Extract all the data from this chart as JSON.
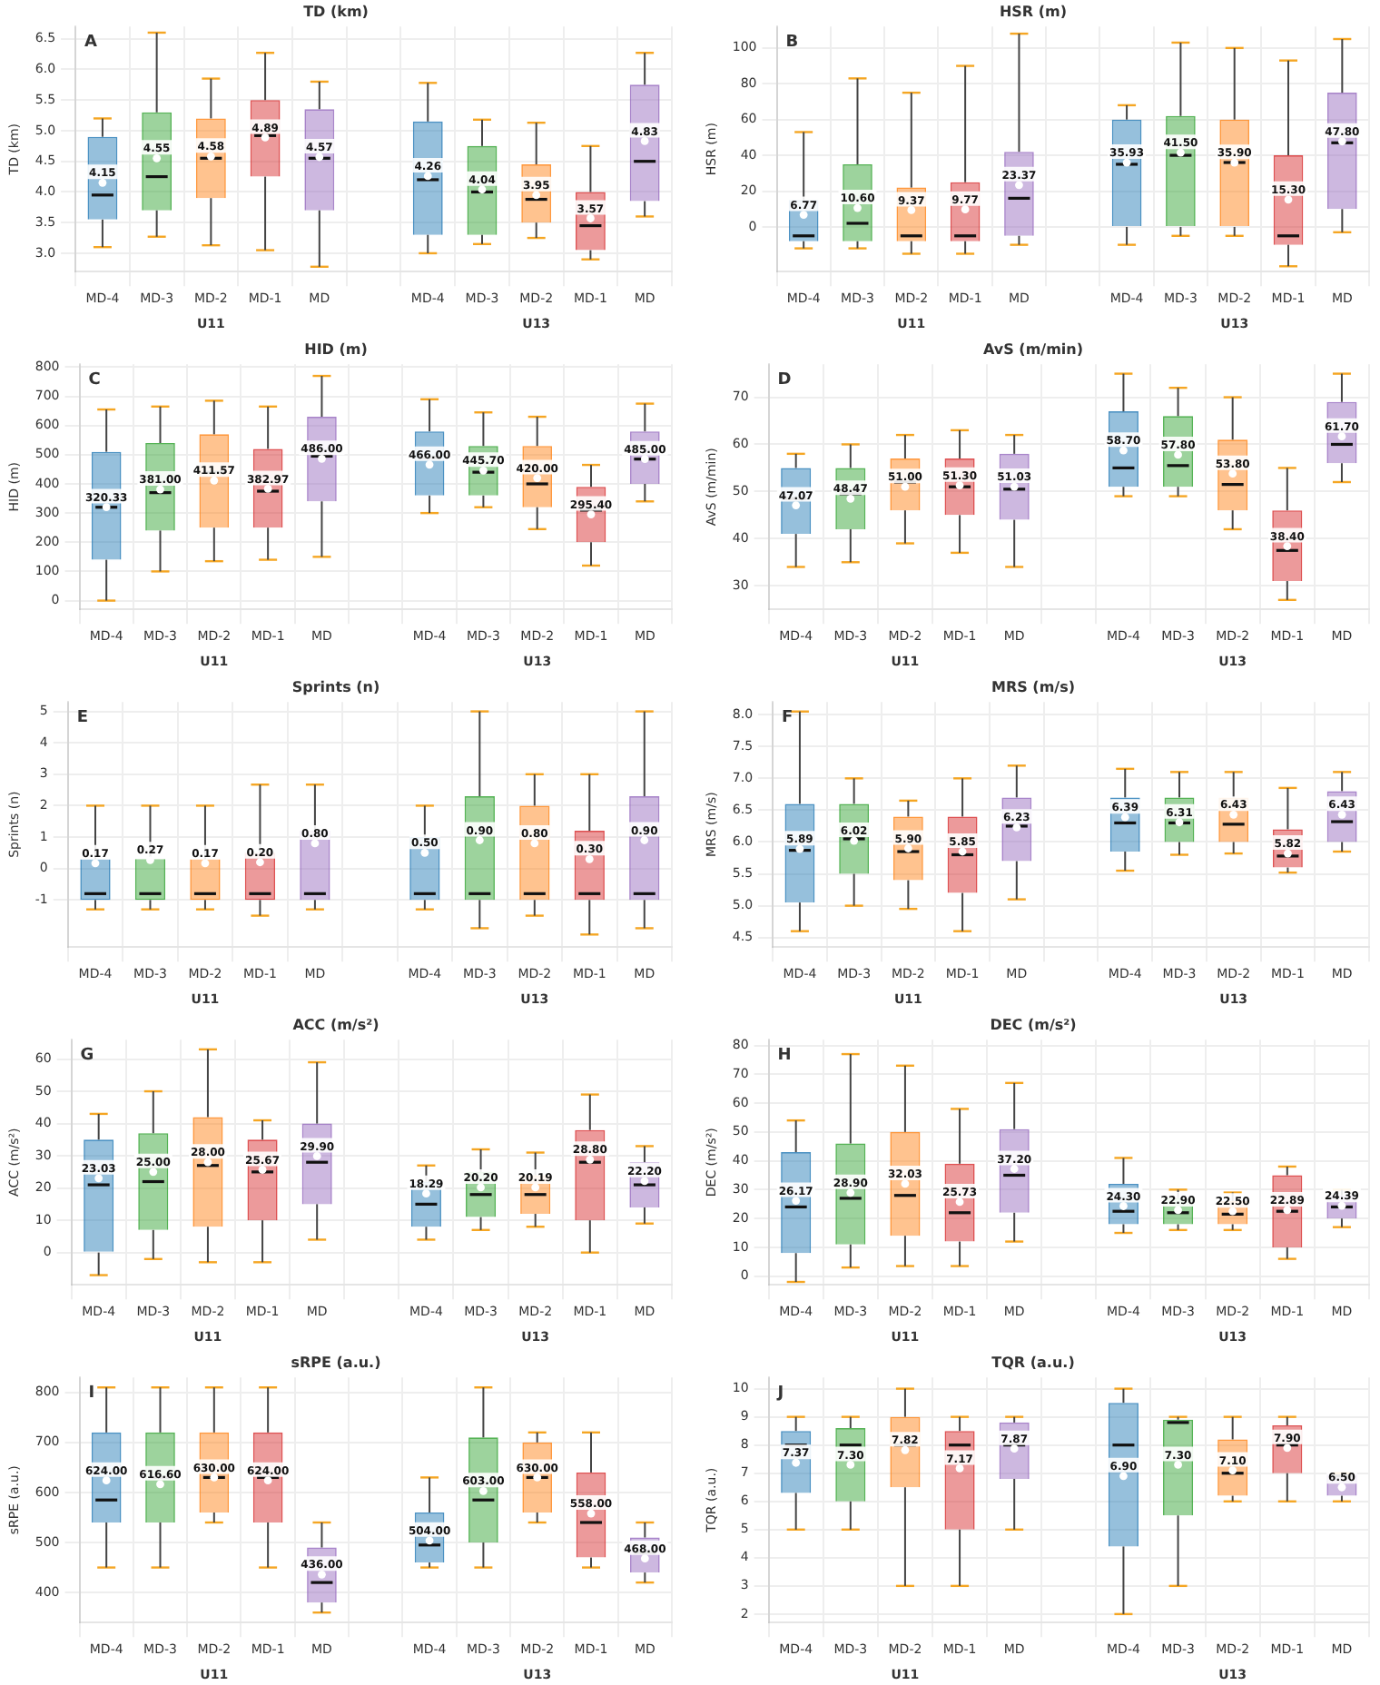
{
  "chart_data": [
    {
      "type": "box",
      "title": "TD (km)",
      "ylabel": "TD (km)",
      "annotations": [
        "A",
        "U11",
        "U13"
      ],
      "categories": [
        "MD-4",
        "MD-3",
        "MD-2",
        "MD-1",
        "MD",
        null,
        "MD-4",
        "MD-3",
        "MD-2",
        "MD-1",
        "MD"
      ],
      "colors": [
        "#1f77b4",
        "#2ca02c",
        "#ff7f0e",
        "#d62728",
        "#9467bd",
        null,
        "#1f77b4",
        "#2ca02c",
        "#ff7f0e",
        "#d62728",
        "#9467bd"
      ],
      "ylim": [
        2.7,
        6.7
      ],
      "yticks": [
        {
          "value": 3,
          "label": "3.0"
        },
        3.5,
        {
          "value": 4,
          "label": "4.0"
        },
        4.5,
        {
          "value": 5,
          "label": "5.0"
        },
        5.5,
        {
          "value": 6,
          "label": "6.0"
        },
        6.5
      ],
      "grid": true,
      "boxes": [
        {
          "low": 3.1,
          "q1": 3.55,
          "median": 3.95,
          "q3": 4.9,
          "high": 5.2,
          "mean": 4.15
        },
        {
          "low": 3.27,
          "q1": 3.7,
          "median": 4.25,
          "q3": 5.3,
          "high": 6.6,
          "mean": 4.55
        },
        {
          "low": 3.13,
          "q1": 3.9,
          "median": 4.55,
          "q3": 5.2,
          "high": 5.85,
          "mean": 4.58
        },
        {
          "low": 3.05,
          "q1": 4.25,
          "median": 4.92,
          "q3": 5.5,
          "high": 6.27,
          "mean": 4.89
        },
        {
          "low": 2.78,
          "q1": 3.7,
          "median": 4.55,
          "q3": 5.35,
          "high": 5.8,
          "mean": 4.57
        },
        null,
        {
          "low": 3.0,
          "q1": 3.3,
          "median": 4.2,
          "q3": 5.15,
          "high": 5.78,
          "mean": 4.26
        },
        {
          "low": 3.15,
          "q1": 3.3,
          "median": 4.0,
          "q3": 4.75,
          "high": 5.18,
          "mean": 4.04
        },
        {
          "low": 3.25,
          "q1": 3.5,
          "median": 3.88,
          "q3": 4.45,
          "high": 5.13,
          "mean": 3.95
        },
        {
          "low": 2.9,
          "q1": 3.05,
          "median": 3.45,
          "q3": 4.0,
          "high": 4.75,
          "mean": 3.57
        },
        {
          "low": 3.6,
          "q1": 3.85,
          "median": 4.5,
          "q3": 5.75,
          "high": 6.27,
          "mean": 4.83
        }
      ],
      "value_labels": [
        "4.15",
        "4.55",
        "4.58",
        "4.89",
        "4.57",
        null,
        "4.26",
        "4.04",
        "3.95",
        "3.57",
        "4.83"
      ]
    },
    {
      "type": "box",
      "title": "HSR (m)",
      "ylabel": "HSR (m)",
      "annotations": [
        "B",
        "U11",
        "U13"
      ],
      "categories": [
        "MD-4",
        "MD-3",
        "MD-2",
        "MD-1",
        "MD",
        null,
        "MD-4",
        "MD-3",
        "MD-2",
        "MD-1",
        "MD"
      ],
      "colors": [
        "#1f77b4",
        "#2ca02c",
        "#ff7f0e",
        "#d62728",
        "#9467bd",
        null,
        "#1f77b4",
        "#2ca02c",
        "#ff7f0e",
        "#d62728",
        "#9467bd"
      ],
      "ylim": [
        -25,
        112
      ],
      "yticks": [
        0,
        20,
        40,
        60,
        80,
        100
      ],
      "grid": true,
      "boxes": [
        {
          "low": -12,
          "q1": -8,
          "median": -5,
          "q3": 15,
          "high": 53,
          "mean": 6.77
        },
        {
          "low": -12,
          "q1": -8,
          "median": 2,
          "q3": 35,
          "high": 83,
          "mean": 10.6
        },
        {
          "low": -15,
          "q1": -8,
          "median": -5,
          "q3": 22,
          "high": 75,
          "mean": 9.37
        },
        {
          "low": -15,
          "q1": -8,
          "median": -5,
          "q3": 25,
          "high": 90,
          "mean": 9.77
        },
        {
          "low": -10,
          "q1": -5,
          "median": 16,
          "q3": 42,
          "high": 108,
          "mean": 23.37
        },
        null,
        {
          "low": -10,
          "q1": 0,
          "median": 35,
          "q3": 60,
          "high": 68,
          "mean": 35.93
        },
        {
          "low": -5,
          "q1": 0,
          "median": 40,
          "q3": 62,
          "high": 103,
          "mean": 41.5
        },
        {
          "low": -5,
          "q1": 0,
          "median": 36,
          "q3": 60,
          "high": 100,
          "mean": 35.9
        },
        {
          "low": -22,
          "q1": -10,
          "median": -5,
          "q3": 40,
          "high": 93,
          "mean": 15.3
        },
        {
          "low": -3,
          "q1": 10,
          "median": 47,
          "q3": 75,
          "high": 105,
          "mean": 47.8
        }
      ],
      "value_labels": [
        "6.77",
        "10.60",
        "9.37",
        "9.77",
        "23.37",
        null,
        "35.93",
        "41.50",
        "35.90",
        "15.30",
        "47.80"
      ]
    },
    {
      "type": "box",
      "title": "HID (m)",
      "ylabel": "HID (m)",
      "annotations": [
        "C",
        "U11",
        "U13"
      ],
      "categories": [
        "MD-4",
        "MD-3",
        "MD-2",
        "MD-1",
        "MD",
        null,
        "MD-4",
        "MD-3",
        "MD-2",
        "MD-1",
        "MD"
      ],
      "colors": [
        "#1f77b4",
        "#2ca02c",
        "#ff7f0e",
        "#d62728",
        "#9467bd",
        null,
        "#1f77b4",
        "#2ca02c",
        "#ff7f0e",
        "#d62728",
        "#9467bd"
      ],
      "ylim": [
        -30,
        810
      ],
      "yticks": [
        0,
        100,
        200,
        300,
        400,
        500,
        600,
        700,
        800
      ],
      "grid": true,
      "boxes": [
        {
          "low": 0,
          "q1": 140,
          "median": 320,
          "q3": 510,
          "high": 655,
          "mean": 320.33
        },
        {
          "low": 100,
          "q1": 240,
          "median": 370,
          "q3": 540,
          "high": 665,
          "mean": 381.0
        },
        {
          "low": 135,
          "q1": 250,
          "median": 440,
          "q3": 570,
          "high": 685,
          "mean": 411.57
        },
        {
          "low": 140,
          "q1": 250,
          "median": 375,
          "q3": 520,
          "high": 665,
          "mean": 382.97
        },
        {
          "low": 150,
          "q1": 340,
          "median": 495,
          "q3": 630,
          "high": 770,
          "mean": 486.0
        },
        null,
        {
          "low": 300,
          "q1": 360,
          "median": 490,
          "q3": 580,
          "high": 690,
          "mean": 466.0
        },
        {
          "low": 320,
          "q1": 360,
          "median": 440,
          "q3": 530,
          "high": 645,
          "mean": 445.7
        },
        {
          "low": 245,
          "q1": 320,
          "median": 400,
          "q3": 530,
          "high": 630,
          "mean": 420.0
        },
        {
          "low": 120,
          "q1": 200,
          "median": 310,
          "q3": 390,
          "high": 465,
          "mean": 295.4
        },
        {
          "low": 340,
          "q1": 400,
          "median": 485,
          "q3": 580,
          "high": 675,
          "mean": 485.0
        }
      ],
      "value_labels": [
        "320.33",
        "381.00",
        "411.57",
        "382.97",
        "486.00",
        null,
        "466.00",
        "445.70",
        "420.00",
        "295.40",
        "485.00"
      ]
    },
    {
      "type": "box",
      "title": "AvS (m/min)",
      "ylabel": "AvS (m/min)",
      "annotations": [
        "D",
        "U11",
        "U13"
      ],
      "categories": [
        "MD-4",
        "MD-3",
        "MD-2",
        "MD-1",
        "MD",
        null,
        "MD-4",
        "MD-3",
        "MD-2",
        "MD-1",
        "MD"
      ],
      "colors": [
        "#1f77b4",
        "#2ca02c",
        "#ff7f0e",
        "#d62728",
        "#9467bd",
        null,
        "#1f77b4",
        "#2ca02c",
        "#ff7f0e",
        "#d62728",
        "#9467bd"
      ],
      "ylim": [
        25,
        77
      ],
      "yticks": [
        30,
        40,
        50,
        60,
        70
      ],
      "grid": true,
      "boxes": [
        {
          "low": 34,
          "q1": 41,
          "median": 48.5,
          "q3": 55,
          "high": 58,
          "mean": 47.07
        },
        {
          "low": 35,
          "q1": 42,
          "median": 49.5,
          "q3": 55,
          "high": 60,
          "mean": 48.47
        },
        {
          "low": 39,
          "q1": 46,
          "median": 52,
          "q3": 57,
          "high": 62,
          "mean": 51.0
        },
        {
          "low": 37,
          "q1": 45,
          "median": 51,
          "q3": 57,
          "high": 63,
          "mean": 51.3
        },
        {
          "low": 34,
          "q1": 44,
          "median": 50.5,
          "q3": 58,
          "high": 62,
          "mean": 51.03
        },
        null,
        {
          "low": 49,
          "q1": 51,
          "median": 55,
          "q3": 67,
          "high": 75,
          "mean": 58.7
        },
        {
          "low": 49,
          "q1": 51,
          "median": 55.5,
          "q3": 66,
          "high": 72,
          "mean": 57.8
        },
        {
          "low": 42,
          "q1": 46,
          "median": 51.5,
          "q3": 61,
          "high": 70,
          "mean": 53.8
        },
        {
          "low": 27,
          "q1": 31,
          "median": 37.5,
          "q3": 46,
          "high": 55,
          "mean": 38.4
        },
        {
          "low": 52,
          "q1": 56,
          "median": 60,
          "q3": 69,
          "high": 75,
          "mean": 61.7
        }
      ],
      "value_labels": [
        "47.07",
        "48.47",
        "51.00",
        "51.30",
        "51.03",
        null,
        "58.70",
        "57.80",
        "53.80",
        "38.40",
        "61.70"
      ]
    },
    {
      "type": "box",
      "title": "Sprints (n)",
      "ylabel": "Sprints (n)",
      "annotations": [
        "E",
        "U11",
        "U13"
      ],
      "categories": [
        "MD-4",
        "MD-3",
        "MD-2",
        "MD-1",
        "MD",
        null,
        "MD-4",
        "MD-3",
        "MD-2",
        "MD-1",
        "MD"
      ],
      "colors": [
        "#1f77b4",
        "#2ca02c",
        "#ff7f0e",
        "#d62728",
        "#9467bd",
        null,
        "#1f77b4",
        "#2ca02c",
        "#ff7f0e",
        "#d62728",
        "#9467bd"
      ],
      "ylim": [
        -2.5,
        5.3
      ],
      "yticks": [
        -1,
        0,
        1,
        2,
        3,
        4,
        5
      ],
      "grid": true,
      "boxes": [
        {
          "low": -1.3,
          "q1": -1.0,
          "median": -0.8,
          "q3": 0.3,
          "high": 2,
          "mean": 0.17
        },
        {
          "low": -1.3,
          "q1": -1.0,
          "median": -0.8,
          "q3": 0.3,
          "high": 2,
          "mean": 0.27
        },
        {
          "low": -1.3,
          "q1": -1.0,
          "median": -0.8,
          "q3": 0.3,
          "high": 2,
          "mean": 0.17
        },
        {
          "low": -1.5,
          "q1": -1.0,
          "median": -0.8,
          "q3": 0.5,
          "high": 2.67,
          "mean": 0.2
        },
        {
          "low": -1.3,
          "q1": -1.0,
          "median": -0.8,
          "q3": 1.2,
          "high": 2.67,
          "mean": 0.8
        },
        null,
        {
          "low": -1.3,
          "q1": -1.0,
          "median": -0.8,
          "q3": 1,
          "high": 2,
          "mean": 0.5
        },
        {
          "low": -1.9,
          "q1": -1.0,
          "median": -0.8,
          "q3": 2.3,
          "high": 5,
          "mean": 0.9
        },
        {
          "low": -1.5,
          "q1": -1.0,
          "median": -0.8,
          "q3": 2,
          "high": 3,
          "mean": 0.8
        },
        {
          "low": -2.1,
          "q1": -1.0,
          "median": -0.8,
          "q3": 1.2,
          "high": 3,
          "mean": 0.3
        },
        {
          "low": -1.9,
          "q1": -1.0,
          "median": -0.8,
          "q3": 2.3,
          "high": 5,
          "mean": 0.9
        }
      ],
      "value_labels": [
        "0.17",
        "0.27",
        "0.17",
        "0.20",
        "0.80",
        null,
        "0.50",
        "0.90",
        "0.80",
        "0.30",
        "0.90"
      ]
    },
    {
      "type": "box",
      "title": "MRS (m/s)",
      "ylabel": "MRS (m/s)",
      "annotations": [
        "F",
        "U11",
        "U13"
      ],
      "categories": [
        "MD-4",
        "MD-3",
        "MD-2",
        "MD-1",
        "MD",
        null,
        "MD-4",
        "MD-3",
        "MD-2",
        "MD-1",
        "MD"
      ],
      "colors": [
        "#1f77b4",
        "#2ca02c",
        "#ff7f0e",
        "#d62728",
        "#9467bd",
        null,
        "#1f77b4",
        "#2ca02c",
        "#ff7f0e",
        "#d62728",
        "#9467bd"
      ],
      "ylim": [
        4.35,
        8.2
      ],
      "yticks": [
        4.5,
        {
          "value": 5,
          "label": "5.0"
        },
        5.5,
        {
          "value": 6,
          "label": "6.0"
        },
        6.5,
        {
          "value": 7,
          "label": "7.0"
        },
        7.5,
        {
          "value": 8,
          "label": "8.0"
        }
      ],
      "grid": true,
      "boxes": [
        {
          "low": 4.6,
          "q1": 5.05,
          "median": 5.87,
          "q3": 6.6,
          "high": 8.05,
          "mean": 5.89
        },
        {
          "low": 5.0,
          "q1": 5.5,
          "median": 6.05,
          "q3": 6.6,
          "high": 7.0,
          "mean": 6.02
        },
        {
          "low": 4.95,
          "q1": 5.4,
          "median": 5.85,
          "q3": 6.4,
          "high": 6.65,
          "mean": 5.9
        },
        {
          "low": 4.6,
          "q1": 5.2,
          "median": 5.8,
          "q3": 6.4,
          "high": 7.0,
          "mean": 5.85
        },
        {
          "low": 5.1,
          "q1": 5.7,
          "median": 6.25,
          "q3": 6.7,
          "high": 7.2,
          "mean": 6.23
        },
        null,
        {
          "low": 5.55,
          "q1": 5.85,
          "median": 6.3,
          "q3": 6.7,
          "high": 7.15,
          "mean": 6.39
        },
        {
          "low": 5.8,
          "q1": 6.0,
          "median": 6.3,
          "q3": 6.7,
          "high": 7.1,
          "mean": 6.31
        },
        {
          "low": 5.82,
          "q1": 6.0,
          "median": 6.28,
          "q3": 6.7,
          "high": 7.1,
          "mean": 6.43
        },
        {
          "low": 5.52,
          "q1": 5.6,
          "median": 5.78,
          "q3": 6.2,
          "high": 6.85,
          "mean": 5.82
        },
        {
          "low": 5.85,
          "q1": 6.0,
          "median": 6.32,
          "q3": 6.8,
          "high": 7.1,
          "mean": 6.43
        }
      ],
      "value_labels": [
        "5.89",
        "6.02",
        "5.90",
        "5.85",
        "6.23",
        null,
        "6.39",
        "6.31",
        "6.43",
        "5.82",
        "6.43"
      ]
    },
    {
      "type": "box",
      "title": "ACC (m/s²)",
      "ylabel": "ACC (m/s²)",
      "annotations": [
        "G",
        "U11",
        "U13"
      ],
      "categories": [
        "MD-4",
        "MD-3",
        "MD-2",
        "MD-1",
        "MD",
        null,
        "MD-4",
        "MD-3",
        "MD-2",
        "MD-1",
        "MD"
      ],
      "colors": [
        "#1f77b4",
        "#2ca02c",
        "#ff7f0e",
        "#d62728",
        "#9467bd",
        null,
        "#1f77b4",
        "#2ca02c",
        "#ff7f0e",
        "#d62728",
        "#9467bd"
      ],
      "ylim": [
        -10,
        66
      ],
      "yticks": [
        0,
        10,
        20,
        30,
        40,
        50,
        60
      ],
      "grid": true,
      "boxes": [
        {
          "low": -7,
          "q1": 0,
          "median": 21,
          "q3": 35,
          "high": 43,
          "mean": 23.03
        },
        {
          "low": -2,
          "q1": 7,
          "median": 22,
          "q3": 37,
          "high": 50,
          "mean": 25.0
        },
        {
          "low": -3,
          "q1": 8,
          "median": 27,
          "q3": 42,
          "high": 63,
          "mean": 28.0
        },
        {
          "low": -3,
          "q1": 10,
          "median": 25,
          "q3": 35,
          "high": 41,
          "mean": 25.67
        },
        {
          "low": 4,
          "q1": 15,
          "median": 28,
          "q3": 40,
          "high": 59,
          "mean": 29.9
        },
        null,
        {
          "low": 4,
          "q1": 8,
          "median": 15,
          "q3": 22,
          "high": 27,
          "mean": 18.29
        },
        {
          "low": 7,
          "q1": 11,
          "median": 18,
          "q3": 25,
          "high": 32,
          "mean": 20.2
        },
        {
          "low": 8,
          "q1": 12,
          "median": 18,
          "q3": 24,
          "high": 31,
          "mean": 20.19
        },
        {
          "low": 0,
          "q1": 10,
          "median": 28,
          "q3": 38,
          "high": 49,
          "mean": 28.8
        },
        {
          "low": 9,
          "q1": 14,
          "median": 21,
          "q3": 28,
          "high": 33,
          "mean": 22.2
        }
      ],
      "value_labels": [
        "23.03",
        "25.00",
        "28.00",
        "25.67",
        "29.90",
        null,
        "18.29",
        "20.20",
        "20.19",
        "28.80",
        "22.20"
      ]
    },
    {
      "type": "box",
      "title": "DEC (m/s²)",
      "ylabel": "DEC (m/s²)",
      "annotations": [
        "H",
        "U11",
        "U13"
      ],
      "categories": [
        "MD-4",
        "MD-3",
        "MD-2",
        "MD-1",
        "MD",
        null,
        "MD-4",
        "MD-3",
        "MD-2",
        "MD-1",
        "MD"
      ],
      "colors": [
        "#1f77b4",
        "#2ca02c",
        "#ff7f0e",
        "#d62728",
        "#9467bd",
        null,
        "#1f77b4",
        "#2ca02c",
        "#ff7f0e",
        "#d62728",
        "#9467bd"
      ],
      "ylim": [
        -3,
        82
      ],
      "yticks": [
        0,
        10,
        20,
        30,
        40,
        50,
        60,
        70,
        80
      ],
      "grid": true,
      "boxes": [
        {
          "low": -2,
          "q1": 8,
          "median": 24,
          "q3": 43,
          "high": 54,
          "mean": 26.17
        },
        {
          "low": 3,
          "q1": 11,
          "median": 27,
          "q3": 46,
          "high": 77,
          "mean": 28.9
        },
        {
          "low": 3.5,
          "q1": 14,
          "median": 28,
          "q3": 50,
          "high": 73,
          "mean": 32.03
        },
        {
          "low": 3.5,
          "q1": 12,
          "median": 22,
          "q3": 39,
          "high": 58,
          "mean": 25.73
        },
        {
          "low": 12,
          "q1": 22,
          "median": 35,
          "q3": 51,
          "high": 67,
          "mean": 37.2
        },
        null,
        {
          "low": 15,
          "q1": 18,
          "median": 22.5,
          "q3": 32,
          "high": 41,
          "mean": 24.3
        },
        {
          "low": 16,
          "q1": 18,
          "median": 22,
          "q3": 27,
          "high": 30,
          "mean": 22.9
        },
        {
          "low": 16,
          "q1": 18,
          "median": 21.5,
          "q3": 26,
          "high": 29,
          "mean": 22.5
        },
        {
          "low": 6,
          "q1": 10,
          "median": 22.5,
          "q3": 35,
          "high": 38,
          "mean": 22.89
        },
        {
          "low": 17,
          "q1": 20,
          "median": 24,
          "q3": 28,
          "high": 30,
          "mean": 24.39
        }
      ],
      "value_labels": [
        "26.17",
        "28.90",
        "32.03",
        "25.73",
        "37.20",
        null,
        "24.30",
        "22.90",
        "22.50",
        "22.89",
        "24.39"
      ]
    },
    {
      "type": "box",
      "title": "sRPE (a.u.)",
      "ylabel": "sRPE (a.u.)",
      "annotations": [
        "I",
        "U11",
        "U13"
      ],
      "categories": [
        "MD-4",
        "MD-3",
        "MD-2",
        "MD-1",
        "MD",
        null,
        "MD-4",
        "MD-3",
        "MD-2",
        "MD-1",
        "MD"
      ],
      "colors": [
        "#1f77b4",
        "#2ca02c",
        "#ff7f0e",
        "#d62728",
        "#9467bd",
        null,
        "#1f77b4",
        "#2ca02c",
        "#ff7f0e",
        "#d62728",
        "#9467bd"
      ],
      "ylim": [
        340,
        830
      ],
      "yticks": [
        400,
        500,
        600,
        700,
        800
      ],
      "grid": true,
      "boxes": [
        {
          "low": 450,
          "q1": 540,
          "median": 585,
          "q3": 720,
          "high": 810,
          "mean": 624.0
        },
        {
          "low": 450,
          "q1": 540,
          "median": 630,
          "q3": 720,
          "high": 810,
          "mean": 616.6
        },
        {
          "low": 540,
          "q1": 560,
          "median": 630,
          "q3": 720,
          "high": 810,
          "mean": 630.0
        },
        {
          "low": 450,
          "q1": 540,
          "median": 630,
          "q3": 720,
          "high": 810,
          "mean": 624.0
        },
        {
          "low": 360,
          "q1": 380,
          "median": 420,
          "q3": 490,
          "high": 540,
          "mean": 436.0
        },
        null,
        {
          "low": 450,
          "q1": 460,
          "median": 495,
          "q3": 560,
          "high": 630,
          "mean": 504.0
        },
        {
          "low": 450,
          "q1": 500,
          "median": 585,
          "q3": 710,
          "high": 810,
          "mean": 603.0
        },
        {
          "low": 540,
          "q1": 560,
          "median": 630,
          "q3": 700,
          "high": 720,
          "mean": 630.0
        },
        {
          "low": 450,
          "q1": 470,
          "median": 540,
          "q3": 640,
          "high": 720,
          "mean": 558.0
        },
        {
          "low": 420,
          "q1": 440,
          "median": 480,
          "q3": 510,
          "high": 540,
          "mean": 468.0
        }
      ],
      "value_labels": [
        "624.00",
        "616.60",
        "630.00",
        "624.00",
        "436.00",
        null,
        "504.00",
        "603.00",
        "630.00",
        "558.00",
        "468.00"
      ]
    },
    {
      "type": "box",
      "title": "TQR (a.u.)",
      "ylabel": "TQR (a.u.)",
      "annotations": [
        "J",
        "U11",
        "U13"
      ],
      "categories": [
        "MD-4",
        "MD-3",
        "MD-2",
        "MD-1",
        "MD",
        null,
        "MD-4",
        "MD-3",
        "MD-2",
        "MD-1",
        "MD"
      ],
      "colors": [
        "#1f77b4",
        "#2ca02c",
        "#ff7f0e",
        "#d62728",
        "#9467bd",
        null,
        "#1f77b4",
        "#2ca02c",
        "#ff7f0e",
        "#d62728",
        "#9467bd"
      ],
      "ylim": [
        1.7,
        10.4
      ],
      "yticks": [
        2,
        3,
        4,
        5,
        6,
        7,
        8,
        9,
        10
      ],
      "grid": true,
      "boxes": [
        {
          "low": 5,
          "q1": 6.3,
          "median": 8,
          "q3": 8.5,
          "high": 9,
          "mean": 7.37
        },
        {
          "low": 5,
          "q1": 6,
          "median": 8,
          "q3": 8.6,
          "high": 9,
          "mean": 7.3
        },
        {
          "low": 3,
          "q1": 6.5,
          "median": 8,
          "q3": 9,
          "high": 10,
          "mean": 7.82
        },
        {
          "low": 3,
          "q1": 5,
          "median": 8,
          "q3": 8.5,
          "high": 9,
          "mean": 7.17
        },
        {
          "low": 5,
          "q1": 6.8,
          "median": 8,
          "q3": 8.8,
          "high": 9,
          "mean": 7.87
        },
        null,
        {
          "low": 2,
          "q1": 4.4,
          "median": 8,
          "q3": 9.5,
          "high": 10,
          "mean": 6.9
        },
        {
          "low": 3,
          "q1": 5.5,
          "median": 8.8,
          "q3": 8.9,
          "high": 9,
          "mean": 7.3
        },
        {
          "low": 6,
          "q1": 6.2,
          "median": 7,
          "q3": 8.2,
          "high": 9,
          "mean": 7.1
        },
        {
          "low": 6,
          "q1": 7,
          "median": 8,
          "q3": 8.7,
          "high": 9,
          "mean": 7.9
        },
        {
          "low": 6,
          "q1": 6.2,
          "median": 6.9,
          "q3": 6.95,
          "high": 7,
          "mean": 6.5
        }
      ],
      "value_labels": [
        "7.37",
        "7.30",
        "7.82",
        "7.17",
        "7.87",
        null,
        "6.90",
        "7.30",
        "7.10",
        "7.90",
        "6.50"
      ]
    }
  ]
}
